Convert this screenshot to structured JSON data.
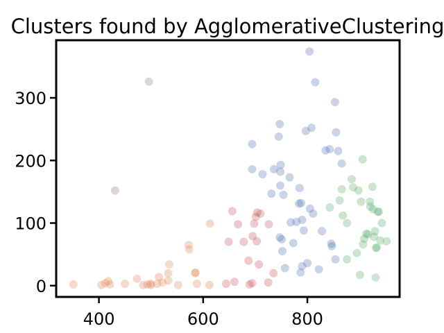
{
  "chart_data": {
    "type": "scatter",
    "title": "Clusters found by AgglomerativeClustering",
    "xlabel": "",
    "ylabel": "",
    "xlim": [
      318,
      977
    ],
    "ylim": [
      -18,
      392
    ],
    "xticks": [
      400,
      600,
      800
    ],
    "yticks": [
      0,
      100,
      200,
      300
    ],
    "grid": false,
    "legend": "none",
    "series": [
      {
        "color": "#dd8452",
        "points": [
          [
            351,
            2
          ],
          [
            405,
            1
          ],
          [
            412,
            4
          ],
          [
            418,
            7
          ],
          [
            421,
            2
          ],
          [
            450,
            3
          ],
          [
            473,
            11
          ],
          [
            485,
            1
          ],
          [
            493,
            2
          ],
          [
            499,
            3
          ],
          [
            500,
            1
          ],
          [
            512,
            3
          ],
          [
            515,
            14
          ],
          [
            522,
            5
          ],
          [
            533,
            8
          ],
          [
            533,
            20
          ],
          [
            535,
            34
          ],
          [
            552,
            1
          ],
          [
            572,
            65
          ],
          [
            573,
            58
          ],
          [
            585,
            21
          ],
          [
            588,
            3
          ],
          [
            585,
            20
          ],
          [
            612,
            1
          ],
          [
            613,
            99
          ]
        ]
      },
      {
        "color": "#c44e52",
        "points": [
          [
            644,
            3
          ],
          [
            649,
            70
          ],
          [
            660,
            6
          ],
          [
            656,
            119
          ],
          [
            667,
            98
          ],
          [
            678,
            70
          ],
          [
            687,
            40
          ],
          [
            689,
            2
          ],
          [
            694,
            4
          ],
          [
            695,
            79
          ],
          [
            698,
            99
          ],
          [
            701,
            110
          ],
          [
            703,
            71
          ],
          [
            704,
            117
          ],
          [
            707,
            34
          ],
          [
            710,
            115
          ],
          [
            725,
            5
          ],
          [
            726,
            98
          ],
          [
            735,
            20
          ]
        ]
      },
      {
        "color": "#4c72b0",
        "points": [
          [
            694,
            226
          ],
          [
            694,
            186
          ],
          [
            714,
            178
          ],
          [
            736,
            186
          ],
          [
            731,
            147
          ],
          [
            745,
            238
          ],
          [
            747,
            258
          ],
          [
            749,
            193
          ],
          [
            748,
            182
          ],
          [
            748,
            160
          ],
          [
            754,
            145
          ],
          [
            747,
            77
          ],
          [
            751,
            74
          ],
          [
            752,
            55
          ],
          [
            757,
            28
          ],
          [
            766,
            173
          ],
          [
            768,
            101
          ],
          [
            773,
            68
          ],
          [
            779,
            102
          ],
          [
            784,
            131
          ],
          [
            785,
            156
          ],
          [
            788,
            132
          ],
          [
            790,
            105
          ],
          [
            787,
            21
          ],
          [
            790,
            31
          ],
          [
            793,
            88
          ],
          [
            797,
            247
          ],
          [
            800,
            36
          ],
          [
            804,
            374
          ],
          [
            808,
            252
          ],
          [
            805,
            123
          ],
          [
            811,
            115
          ],
          [
            815,
            325
          ],
          [
            822,
            26
          ],
          [
            828,
            87
          ],
          [
            835,
            216
          ],
          [
            843,
            218
          ],
          [
            846,
            67
          ],
          [
            847,
            63
          ],
          [
            853,
            293
          ],
          [
            855,
            245
          ],
          [
            859,
            215
          ],
          [
            866,
            195
          ],
          [
            854,
            42
          ]
        ]
      },
      {
        "color": "#55a868",
        "points": [
          [
            843,
            125
          ],
          [
            862,
            136
          ],
          [
            866,
            154
          ],
          [
            868,
            112
          ],
          [
            876,
            100
          ],
          [
            876,
            42
          ],
          [
            885,
            170
          ],
          [
            888,
            157
          ],
          [
            895,
            52
          ],
          [
            898,
            152
          ],
          [
            901,
            17
          ],
          [
            903,
            134
          ],
          [
            906,
            202
          ],
          [
            907,
            66
          ],
          [
            909,
            75
          ],
          [
            913,
            83
          ],
          [
            916,
            82
          ],
          [
            920,
            134
          ],
          [
            921,
            126
          ],
          [
            925,
            158
          ],
          [
            926,
            122
          ],
          [
            930,
            87
          ],
          [
            931,
            13
          ],
          [
            933,
            61
          ],
          [
            932,
            60
          ],
          [
            935,
            118
          ],
          [
            937,
            118
          ],
          [
            940,
            72
          ],
          [
            943,
            100
          ],
          [
            952,
            71
          ],
          [
            928,
            78
          ]
        ]
      },
      {
        "color": "#937860",
        "points": [
          [
            431,
            152
          ],
          [
            496,
            326
          ]
        ]
      }
    ]
  }
}
